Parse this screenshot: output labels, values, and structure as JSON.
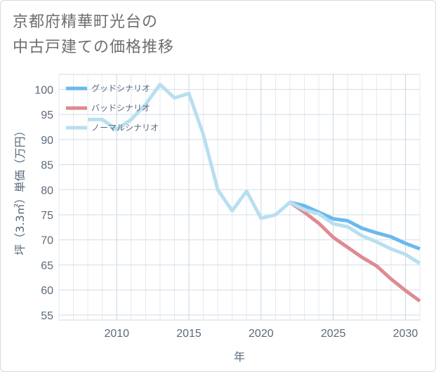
{
  "title_line1": "京都府精華町光台の",
  "title_line2": "中古戸建ての価格推移",
  "chart_data": {
    "type": "line",
    "title": "京都府精華町光台の中古戸建ての価格推移",
    "xlabel": "年",
    "ylabel": "坪（3.3㎡）単価（万円）",
    "xlim": [
      2006,
      2031
    ],
    "ylim": [
      54,
      103
    ],
    "xticks": [
      2010,
      2015,
      2020,
      2025,
      2030
    ],
    "yticks": [
      55,
      60,
      65,
      70,
      75,
      80,
      85,
      90,
      95,
      100
    ],
    "grid": true,
    "legend_position": "top-left",
    "series": [
      {
        "name": "グッドシナリオ",
        "color": "#6ab9ee",
        "x": [
          2022,
          2023,
          2024,
          2025,
          2026,
          2027,
          2028,
          2029,
          2030,
          2031
        ],
        "y": [
          77.5,
          76.8,
          75.5,
          74.2,
          73.8,
          72.3,
          71.4,
          70.6,
          69.3,
          68.2
        ]
      },
      {
        "name": "バッドシナリオ",
        "color": "#de8a92",
        "x": [
          2022,
          2023,
          2024,
          2025,
          2026,
          2027,
          2028,
          2029,
          2030,
          2031
        ],
        "y": [
          77.5,
          75.5,
          73.3,
          70.5,
          68.5,
          66.5,
          64.8,
          62.2,
          59.9,
          57.8
        ]
      },
      {
        "name": "ノーマルシナリオ",
        "color": "#b8dff0",
        "x": [
          2008,
          2009,
          2010,
          2011,
          2012,
          2013,
          2014,
          2015,
          2016,
          2017,
          2018,
          2019,
          2020,
          2021,
          2022,
          2023,
          2024,
          2025,
          2026,
          2027,
          2028,
          2029,
          2030,
          2031
        ],
        "y": [
          94,
          94,
          92,
          94,
          97,
          101,
          98.3,
          99.2,
          91,
          80,
          75.8,
          79.7,
          74.3,
          75,
          77.5,
          76,
          75.2,
          73.2,
          72.6,
          70.8,
          69.6,
          68.2,
          67.1,
          65.3
        ]
      }
    ]
  }
}
